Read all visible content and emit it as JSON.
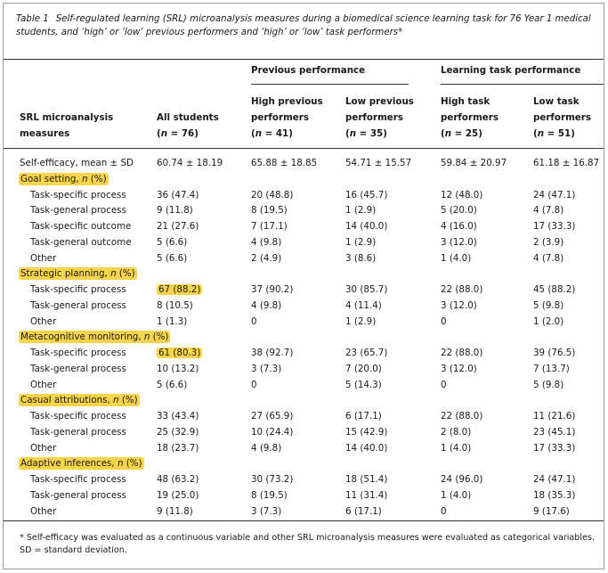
{
  "caption": {
    "label": "Table 1",
    "text": "Self-regulated learning (SRL) microanalysis measures during a biomedical science learning task for 76 Year 1 medical students, and ‘high’ or ‘low’ previous performers and ‘high’ or ‘low’ task performers*"
  },
  "header": {
    "group_previous": "Previous performance",
    "group_task": "Learning task performance",
    "col_measure": [
      "SRL microanalysis",
      "measures"
    ],
    "col_all": [
      "All students",
      "(n = 76)"
    ],
    "col_high_prev": [
      "High previous",
      "performers",
      "(n = 41)"
    ],
    "col_low_prev": [
      "Low previous",
      "performers",
      "(n = 35)"
    ],
    "col_high_task": [
      "High task",
      "performers",
      "(n = 25)"
    ],
    "col_low_task": [
      "Low task",
      "performers",
      "(n = 51)"
    ]
  },
  "rows": [
    {
      "type": "row",
      "label": "Self-efficacy, mean ± SD",
      "indent": false,
      "values": [
        "60.74 ± 18.19",
        "65.88 ± 18.85",
        "54.71 ± 15.57",
        "59.84 ± 20.97",
        "61.18 ± 16.87"
      ]
    },
    {
      "type": "section",
      "label": "Goal setting, n (%)"
    },
    {
      "type": "row",
      "label": "Task-specific process",
      "indent": true,
      "values": [
        "36 (47.4)",
        "20 (48.8)",
        "16 (45.7)",
        "12 (48.0)",
        "24 (47.1)"
      ]
    },
    {
      "type": "row",
      "label": "Task-general process",
      "indent": true,
      "values": [
        "9 (11.8)",
        "8 (19.5)",
        "1 (2.9)",
        "5 (20.0)",
        "4 (7.8)"
      ]
    },
    {
      "type": "row",
      "label": "Task-specific outcome",
      "indent": true,
      "values": [
        "21 (27.6)",
        "7 (17.1)",
        "14 (40.0)",
        "4 (16.0)",
        "17 (33.3)"
      ]
    },
    {
      "type": "row",
      "label": "Task-general outcome",
      "indent": true,
      "values": [
        "5 (6.6)",
        "4 (9.8)",
        "1 (2.9)",
        "3 (12.0)",
        "2 (3.9)"
      ]
    },
    {
      "type": "row",
      "label": "Other",
      "indent": true,
      "values": [
        "5 (6.6)",
        "2 (4.9)",
        "3 (8.6)",
        "1 (4.0)",
        "4 (7.8)"
      ]
    },
    {
      "type": "section",
      "label": "Strategic planning, n (%)"
    },
    {
      "type": "row",
      "label": "Task-specific process",
      "indent": true,
      "highlight_all": true,
      "values": [
        "67 (88.2)",
        "37 (90.2)",
        "30 (85.7)",
        "22 (88.0)",
        "45 (88.2)"
      ]
    },
    {
      "type": "row",
      "label": "Task-general process",
      "indent": true,
      "values": [
        "8 (10.5)",
        "4 (9.8)",
        "4 (11.4)",
        "3 (12.0)",
        "5 (9.8)"
      ]
    },
    {
      "type": "row",
      "label": "Other",
      "indent": true,
      "values": [
        "1 (1.3)",
        "0",
        "1 (2.9)",
        "0",
        "1 (2.0)"
      ]
    },
    {
      "type": "section",
      "label": "Metacognitive monitoring, n (%)"
    },
    {
      "type": "row",
      "label": "Task-specific process",
      "indent": true,
      "highlight_all": true,
      "values": [
        "61 (80.3)",
        "38 (92.7)",
        "23 (65.7)",
        "22 (88.0)",
        "39 (76.5)"
      ]
    },
    {
      "type": "row",
      "label": "Task-general process",
      "indent": true,
      "values": [
        "10 (13.2)",
        "3 (7.3)",
        "7 (20.0)",
        "3 (12.0)",
        "7 (13.7)"
      ]
    },
    {
      "type": "row",
      "label": "Other",
      "indent": true,
      "values": [
        "5 (6.6)",
        "0",
        "5 (14.3)",
        "0",
        "5 (9.8)"
      ]
    },
    {
      "type": "section",
      "label": "Casual attributions, n (%)"
    },
    {
      "type": "row",
      "label": "Task-specific process",
      "indent": true,
      "values": [
        "33 (43.4)",
        "27 (65.9)",
        "6 (17.1)",
        "22 (88.0)",
        "11 (21.6)"
      ]
    },
    {
      "type": "row",
      "label": "Task-general process",
      "indent": true,
      "values": [
        "25 (32.9)",
        "10 (24.4)",
        "15 (42.9)",
        "2 (8.0)",
        "23 (45.1)"
      ]
    },
    {
      "type": "row",
      "label": "Other",
      "indent": true,
      "values": [
        "18 (23.7)",
        "4 (9.8)",
        "14 (40.0)",
        "1 (4.0)",
        "17 (33.3)"
      ]
    },
    {
      "type": "section",
      "label": "Adaptive inferences, n (%)"
    },
    {
      "type": "row",
      "label": "Task-specific process",
      "indent": true,
      "values": [
        "48 (63.2)",
        "30 (73.2)",
        "18 (51.4)",
        "24 (96.0)",
        "24 (47.1)"
      ]
    },
    {
      "type": "row",
      "label": "Task-general process",
      "indent": true,
      "values": [
        "19 (25.0)",
        "8 (19.5)",
        "11 (31.4)",
        "1 (4.0)",
        "18 (35.3)"
      ]
    },
    {
      "type": "row",
      "label": "Other",
      "indent": true,
      "values": [
        "9 (11.8)",
        "3 (7.3)",
        "6 (17.1)",
        "0",
        "9 (17.6)"
      ]
    }
  ],
  "footnote": {
    "line1": "* Self-efficacy was evaluated as a continuous variable and other SRL microanalysis measures were evaluated as categorical variables.",
    "line2": "SD = standard deviation."
  },
  "colors": {
    "highlight": "#f7d44a",
    "rule": "#333333",
    "frame": "#9a9a9a"
  }
}
